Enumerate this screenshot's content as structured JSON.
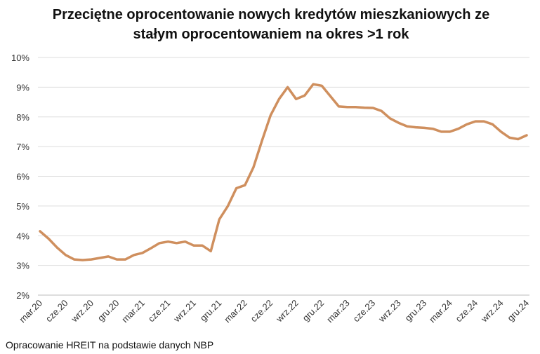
{
  "chart_data": {
    "type": "line",
    "title": [
      "Przeciętne oprocentowanie nowych kredytów mieszkaniowych ze",
      "stałym oprocentowaniem na okres >1 rok"
    ],
    "source": "Opracowanie HREIT na podstawie danych NBP",
    "categories": [
      "mar.20",
      null,
      null,
      "cze.20",
      null,
      null,
      "wrz.20",
      null,
      null,
      "gru.20",
      null,
      null,
      "mar.21",
      null,
      null,
      "cze.21",
      null,
      null,
      "wrz.21",
      null,
      null,
      "gru.21",
      null,
      null,
      "mar.22",
      null,
      null,
      "cze.22",
      null,
      null,
      "wrz.22",
      null,
      null,
      "gru.22",
      null,
      null,
      "mar.23",
      null,
      null,
      "cze.23",
      null,
      null,
      "wrz.23",
      null,
      null,
      "gru.23",
      null,
      null,
      "mar.24",
      null,
      null,
      "cze.24",
      null,
      null,
      "wrz.24",
      null,
      null,
      "gru.24"
    ],
    "series": [
      {
        "color": "#cf8f5e",
        "values": [
          4.15,
          3.9,
          3.6,
          3.35,
          3.2,
          3.18,
          3.2,
          3.25,
          3.3,
          3.2,
          3.2,
          3.35,
          3.42,
          3.58,
          3.75,
          3.8,
          3.75,
          3.8,
          3.67,
          3.67,
          3.48,
          4.55,
          5.0,
          5.6,
          5.7,
          6.3,
          7.2,
          8.05,
          8.6,
          9.0,
          8.6,
          8.72,
          9.1,
          9.05,
          8.7,
          8.35,
          8.33,
          8.33,
          8.31,
          8.3,
          8.2,
          7.95,
          7.8,
          7.68,
          7.65,
          7.63,
          7.6,
          7.5,
          7.5,
          7.6,
          7.75,
          7.85,
          7.85,
          7.75,
          7.5,
          7.3,
          7.25,
          7.38
        ]
      }
    ],
    "ylim": [
      2,
      10
    ],
    "yticks": [
      {
        "value": 2,
        "label": "2%"
      },
      {
        "value": 3,
        "label": "3%"
      },
      {
        "value": 4,
        "label": "4%"
      },
      {
        "value": 5,
        "label": "5%"
      },
      {
        "value": 6,
        "label": "6%"
      },
      {
        "value": 7,
        "label": "7%"
      },
      {
        "value": 8,
        "label": "8%"
      },
      {
        "value": 9,
        "label": "9%"
      },
      {
        "value": 10,
        "label": "10%"
      }
    ],
    "grid": true
  }
}
